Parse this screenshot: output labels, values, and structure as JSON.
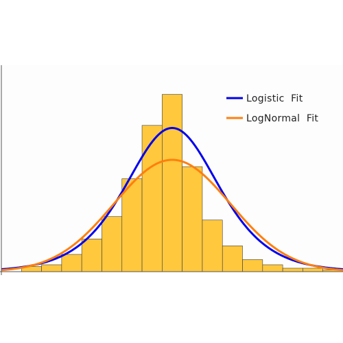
{
  "chart_data": {
    "type": "bar",
    "title": "",
    "xlabel": "",
    "ylabel": "",
    "grid": false,
    "legend_position": "top-right",
    "bins": [
      -8.5,
      -7.5,
      -6.5,
      -5.5,
      -4.5,
      -3.5,
      -2.5,
      -1.5,
      -0.5,
      0.5,
      1.5,
      2.5,
      3.5,
      4.5,
      5.5,
      6.5,
      7.5
    ],
    "values": [
      0,
      3,
      4,
      10,
      19,
      32,
      54,
      85,
      103,
      61,
      30,
      15,
      7,
      4,
      2,
      2,
      1
    ],
    "xlim": [
      -8.5,
      8.5
    ],
    "ylim": [
      0,
      120
    ],
    "bar_color": "#ffc83d",
    "series": [
      {
        "name": "Logistic  Fit",
        "type": "line",
        "color": "#0000ee",
        "peak": 83.5,
        "center": 0,
        "scale": 1.55
      },
      {
        "name": "LogNormal  Fit",
        "type": "line",
        "color": "#ff7f0e",
        "peak": 65,
        "center": 0,
        "sigma": 2.9
      }
    ]
  }
}
